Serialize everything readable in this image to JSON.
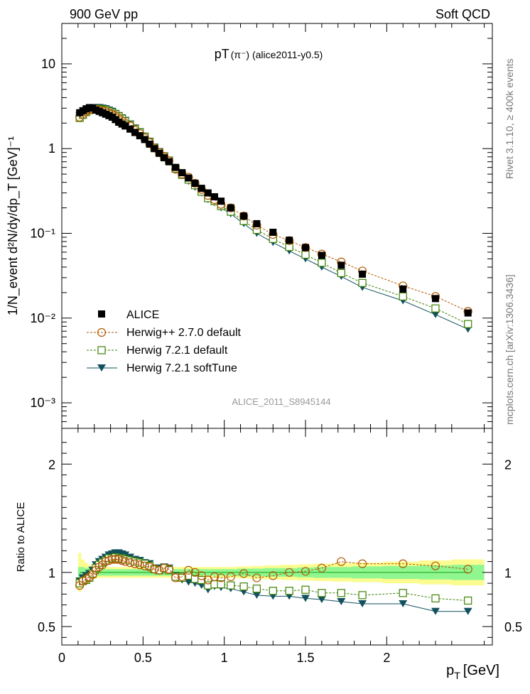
{
  "header": {
    "left": "900 GeV pp",
    "right": "Soft QCD"
  },
  "side": {
    "top": "Rivet 3.1.10, ≥ 400k events",
    "bottom": "mcplots.cern.ch [arXiv:1306.3436]"
  },
  "colors": {
    "alice": "#000000",
    "herwigpp": "#b25800",
    "herwig72": "#3c8200",
    "softtune": "#12505e",
    "band_inner": "#90f790",
    "band_outer": "#fbfb90"
  },
  "icons": {
    "alice": "filled-square-marker",
    "herwigpp": "open-circle-marker",
    "herwig72": "open-square-marker",
    "softtune": "filled-down-triangle-marker"
  },
  "chart_data": [
    {
      "type": "scatter",
      "title": "pT(π⁻) (alice2011-y0.5)",
      "title_main": "pT",
      "title_sub": "(π⁻) (alice2011-y0.5)",
      "ylabel": "1/N_event d²N/dy/dp_T [GeV]⁻¹",
      "yscale": "log",
      "ylim": [
        0.0005,
        30
      ],
      "xlim": [
        0,
        2.65
      ],
      "yticks": [
        "10",
        "1",
        "10⁻¹",
        "10⁻²",
        "10⁻³"
      ],
      "ytick_values": [
        10,
        1,
        0.1,
        0.01,
        0.001
      ],
      "watermark": "ALICE_2011_S8945144",
      "legend_position": "bottom-left",
      "x": [
        0.11,
        0.13,
        0.15,
        0.17,
        0.19,
        0.21,
        0.23,
        0.25,
        0.27,
        0.29,
        0.31,
        0.33,
        0.35,
        0.37,
        0.39,
        0.42,
        0.45,
        0.48,
        0.51,
        0.54,
        0.57,
        0.6,
        0.63,
        0.66,
        0.7,
        0.74,
        0.78,
        0.82,
        0.86,
        0.9,
        0.94,
        0.98,
        1.04,
        1.12,
        1.2,
        1.3,
        1.4,
        1.5,
        1.6,
        1.72,
        1.85,
        2.1,
        2.3,
        2.5
      ],
      "series": [
        {
          "name": "ALICE",
          "values": [
            2.65,
            2.8,
            2.95,
            3.05,
            3.0,
            2.85,
            2.75,
            2.65,
            2.55,
            2.45,
            2.35,
            2.2,
            2.05,
            1.95,
            1.85,
            1.7,
            1.55,
            1.42,
            1.28,
            1.13,
            1.0,
            0.88,
            0.78,
            0.7,
            0.6,
            0.52,
            0.45,
            0.39,
            0.34,
            0.3,
            0.27,
            0.24,
            0.2,
            0.16,
            0.13,
            0.103,
            0.083,
            0.068,
            0.055,
            0.042,
            0.033,
            0.022,
            0.017,
            0.0115
          ]
        },
        {
          "name": "Herwig++ 2.7.0 default",
          "values": [
            2.35,
            2.55,
            2.75,
            2.9,
            2.9,
            2.9,
            2.85,
            2.8,
            2.75,
            2.65,
            2.55,
            2.45,
            2.3,
            2.15,
            2.0,
            1.85,
            1.65,
            1.5,
            1.34,
            1.18,
            1.02,
            0.9,
            0.81,
            0.72,
            0.57,
            0.5,
            0.46,
            0.39,
            0.33,
            0.28,
            0.25,
            0.22,
            0.2,
            0.16,
            0.125,
            0.097,
            0.082,
            0.068,
            0.057,
            0.046,
            0.036,
            0.024,
            0.018,
            0.012
          ]
        },
        {
          "name": "Herwig 7.2.1 default",
          "values": [
            2.3,
            2.5,
            2.7,
            2.85,
            2.9,
            2.95,
            2.95,
            2.9,
            2.85,
            2.75,
            2.65,
            2.55,
            2.4,
            2.25,
            2.1,
            1.9,
            1.7,
            1.55,
            1.38,
            1.2,
            1.02,
            0.9,
            0.8,
            0.72,
            0.58,
            0.49,
            0.43,
            0.37,
            0.31,
            0.26,
            0.24,
            0.21,
            0.18,
            0.14,
            0.11,
            0.086,
            0.069,
            0.056,
            0.045,
            0.034,
            0.026,
            0.018,
            0.013,
            0.0085
          ]
        },
        {
          "name": "Herwig 7.2.1 softTune",
          "values": [
            2.45,
            2.6,
            2.8,
            2.95,
            3.0,
            3.05,
            3.05,
            3.0,
            2.95,
            2.85,
            2.75,
            2.6,
            2.45,
            2.3,
            2.15,
            1.95,
            1.75,
            1.58,
            1.4,
            1.22,
            1.04,
            0.92,
            0.82,
            0.73,
            0.58,
            0.48,
            0.41,
            0.35,
            0.3,
            0.25,
            0.23,
            0.2,
            0.17,
            0.13,
            0.1,
            0.078,
            0.062,
            0.05,
            0.04,
            0.031,
            0.023,
            0.016,
            0.011,
            0.0074
          ]
        }
      ]
    },
    {
      "type": "scatter",
      "ylabel": "Ratio to ALICE",
      "ylim": [
        0.33,
        2.33
      ],
      "xlim": [
        0,
        2.65
      ],
      "xlabel": "p_T [GeV]",
      "xlabel_main": "p",
      "xlabel_sub": "T",
      "xlabel_unit": "[GeV]",
      "xticks": [
        "0",
        "0.5",
        "1",
        "1.5",
        "2"
      ],
      "xtick_values": [
        0,
        0.5,
        1,
        1.5,
        2
      ],
      "yticks": [
        "0.5",
        "1",
        "2"
      ],
      "ytick_values": [
        0.5,
        1,
        2
      ],
      "reference": 1,
      "band_inner_halfwidth": [
        0.05,
        0.05,
        0.04,
        0.04,
        0.035,
        0.035,
        0.03,
        0.03,
        0.03,
        0.03,
        0.03,
        0.03,
        0.03,
        0.03,
        0.03,
        0.03,
        0.03,
        0.03,
        0.03,
        0.03,
        0.03,
        0.03,
        0.03,
        0.03,
        0.03,
        0.03,
        0.03,
        0.03,
        0.03,
        0.03,
        0.03,
        0.03,
        0.03,
        0.035,
        0.035,
        0.04,
        0.04,
        0.045,
        0.05,
        0.05,
        0.055,
        0.06,
        0.065,
        0.07
      ],
      "band_outer_halfwidth": [
        0.18,
        0.12,
        0.09,
        0.07,
        0.06,
        0.06,
        0.05,
        0.05,
        0.05,
        0.05,
        0.05,
        0.05,
        0.05,
        0.05,
        0.05,
        0.05,
        0.05,
        0.05,
        0.05,
        0.05,
        0.05,
        0.05,
        0.05,
        0.05,
        0.05,
        0.05,
        0.05,
        0.05,
        0.05,
        0.05,
        0.05,
        0.05,
        0.05,
        0.055,
        0.06,
        0.065,
        0.07,
        0.075,
        0.08,
        0.085,
        0.09,
        0.1,
        0.11,
        0.12
      ],
      "series": [
        {
          "name": "Herwig++ 2.7.0 default",
          "values": [
            0.88,
            0.92,
            0.94,
            0.96,
            0.98,
            1.02,
            1.05,
            1.07,
            1.1,
            1.11,
            1.12,
            1.12,
            1.12,
            1.11,
            1.1,
            1.09,
            1.08,
            1.07,
            1.06,
            1.05,
            1.03,
            1.02,
            1.04,
            1.03,
            0.95,
            0.96,
            1.02,
            1.0,
            0.97,
            0.93,
            0.96,
            0.95,
            0.96,
            0.99,
            0.95,
            0.97,
            1.0,
            1.01,
            1.04,
            1.1,
            1.08,
            1.08,
            1.06,
            1.03
          ]
        },
        {
          "name": "Herwig 7.2.1 default",
          "values": [
            0.9,
            0.92,
            0.93,
            0.95,
            0.99,
            1.04,
            1.07,
            1.09,
            1.11,
            1.13,
            1.13,
            1.14,
            1.13,
            1.13,
            1.12,
            1.11,
            1.1,
            1.09,
            1.08,
            1.06,
            1.03,
            1.02,
            1.04,
            1.02,
            0.96,
            0.95,
            0.97,
            0.94,
            0.93,
            0.88,
            0.89,
            0.89,
            0.88,
            0.87,
            0.85,
            0.83,
            0.83,
            0.84,
            0.81,
            0.81,
            0.79,
            0.81,
            0.76,
            0.74
          ]
        },
        {
          "name": "Herwig 7.2.1 softTune",
          "values": [
            0.92,
            0.95,
            0.97,
            0.99,
            1.02,
            1.07,
            1.1,
            1.12,
            1.14,
            1.16,
            1.17,
            1.18,
            1.18,
            1.17,
            1.16,
            1.14,
            1.12,
            1.11,
            1.09,
            1.08,
            1.04,
            1.04,
            1.05,
            1.04,
            0.97,
            0.93,
            0.91,
            0.9,
            0.88,
            0.84,
            0.87,
            0.86,
            0.85,
            0.82,
            0.79,
            0.78,
            0.78,
            0.76,
            0.75,
            0.73,
            0.71,
            0.71,
            0.64,
            0.64
          ]
        }
      ]
    }
  ]
}
